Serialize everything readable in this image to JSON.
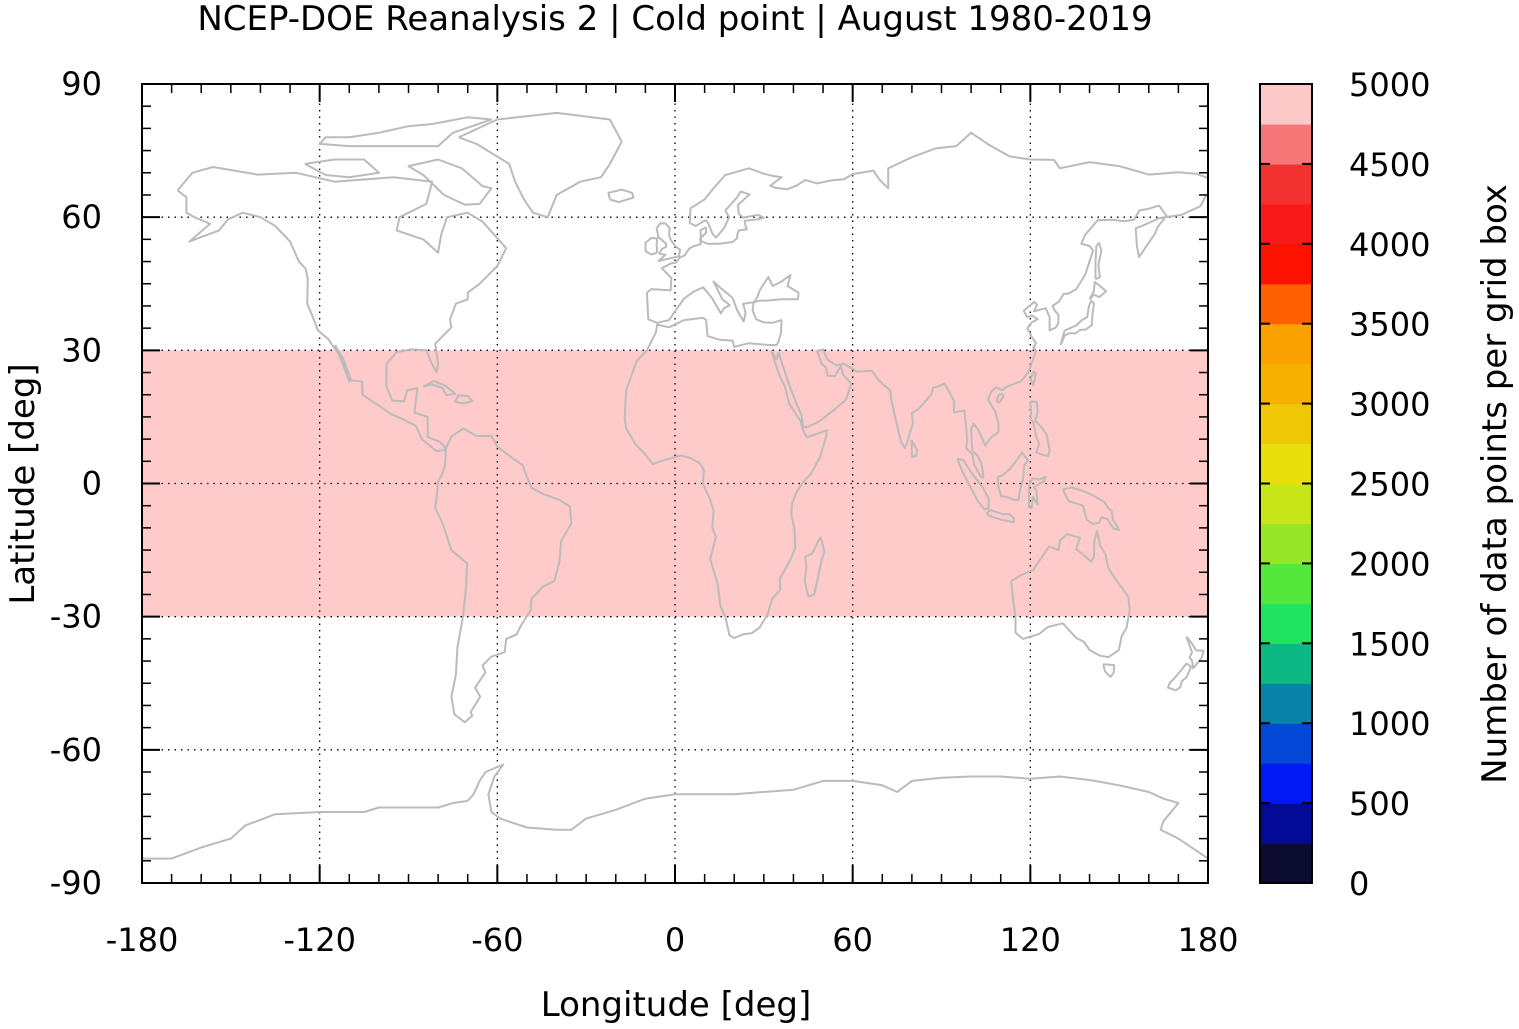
{
  "chart_data": {
    "type": "heatmap",
    "title": "NCEP-DOE Reanalysis 2 | Cold point | August 1980-2019",
    "xlabel": "Longitude [deg]",
    "ylabel": "Latitude [deg]",
    "xlim": [
      -180,
      180
    ],
    "ylim": [
      -90,
      90
    ],
    "xticks": [
      -180,
      -120,
      -60,
      0,
      60,
      120,
      180
    ],
    "yticks": [
      90,
      60,
      30,
      0,
      -30,
      -60,
      -90
    ],
    "grid": true,
    "grid_style": "dotted",
    "background_map": "coastlines",
    "coastline_color": "#bbbbbb",
    "regions": [
      {
        "lon": [
          -180,
          180
        ],
        "lat": [
          -30,
          30
        ],
        "value": 5000,
        "color": "#fecaca"
      }
    ],
    "colorbar": {
      "label": "Number of data points per grid box",
      "range": [
        0,
        5000
      ],
      "ticks": [
        5000,
        4500,
        4000,
        3500,
        3000,
        2500,
        2000,
        1500,
        1000,
        500,
        0
      ],
      "colors": [
        "#0c0c30",
        "#030b96",
        "#0019f5",
        "#0448d8",
        "#0882a6",
        "#0cb884",
        "#20e362",
        "#55e83c",
        "#96e529",
        "#c7e618",
        "#e8de0c",
        "#f0c705",
        "#f6b100",
        "#f9a200",
        "#fe5f00",
        "#fd1101",
        "#f91919",
        "#f23131",
        "#f57777",
        "#fdc8c8"
      ]
    }
  }
}
